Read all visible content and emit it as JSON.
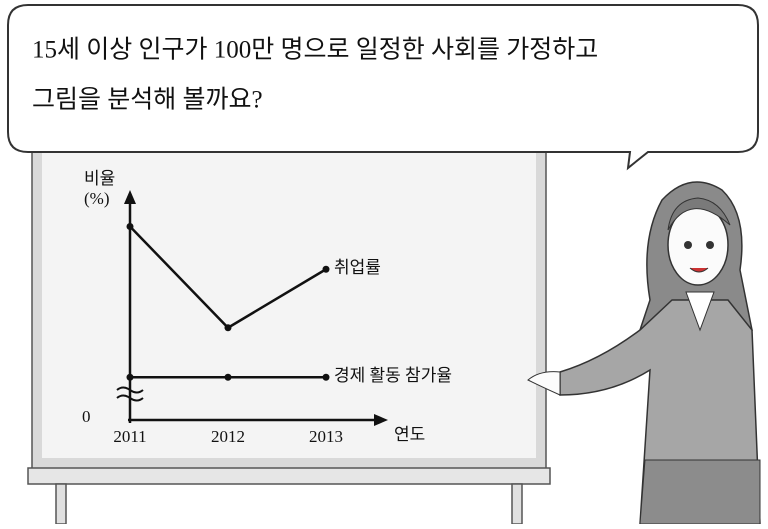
{
  "speech": {
    "lines": [
      "15세 이상 인구가 100만 명으로 일정한 사회를 가정하고",
      "그림을 분석해 볼까요?"
    ]
  },
  "chart_data": {
    "type": "line",
    "ylabel": "비율",
    "yunit": "(%)",
    "xlabel": "연도",
    "categories": [
      "2011",
      "2012",
      "2013"
    ],
    "series": [
      {
        "name": "취업률",
        "color": "#111111",
        "values": [
          86,
          41,
          67
        ]
      },
      {
        "name": "경제 활동 참가율",
        "color": "#111111",
        "values": [
          19,
          19,
          19
        ]
      }
    ],
    "ylim": [
      0,
      100
    ],
    "yticks": [
      0
    ],
    "axis_break": true
  }
}
